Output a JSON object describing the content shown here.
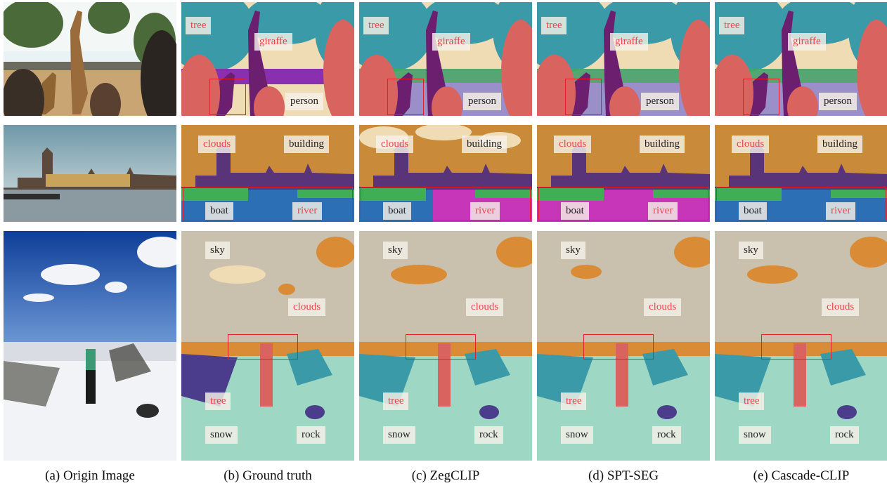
{
  "columns": [
    {
      "key": "origin",
      "caption": "(a) Origin Image"
    },
    {
      "key": "gt",
      "caption": "(b) Ground truth"
    },
    {
      "key": "zegclip",
      "caption": "(c) ZegCLIP"
    },
    {
      "key": "sptseg",
      "caption": "(d) SPT-SEG"
    },
    {
      "key": "cascade",
      "caption": "(e) Cascade-CLIP"
    }
  ],
  "rows": [
    {
      "key": "giraffe",
      "labels": {
        "tree": "tree",
        "giraffe": "giraffe",
        "person": "person"
      }
    },
    {
      "key": "london",
      "labels": {
        "clouds": "clouds",
        "building": "building",
        "boat": "boat",
        "river": "river"
      }
    },
    {
      "key": "snow",
      "labels": {
        "sky": "sky",
        "clouds": "clouds",
        "tree": "tree",
        "snow": "snow",
        "rock": "rock"
      }
    }
  ],
  "colors": {
    "highlight_label": "#e8474b",
    "normal_label": "#222222",
    "box": "#e0202a",
    "tree": "#3a9aa8",
    "giraffe": "#6b1f6e",
    "person": "#d9645f",
    "sand": "#f0dcb4",
    "clouds": "#d98c35",
    "building": "#5a3478",
    "boat": "#3fae57",
    "river": "#2c6fb5",
    "river_wrong": "#c735b8",
    "sky": "#c9c1ad",
    "snow": "#9ed8c5",
    "rock": "#4b3d8c"
  }
}
